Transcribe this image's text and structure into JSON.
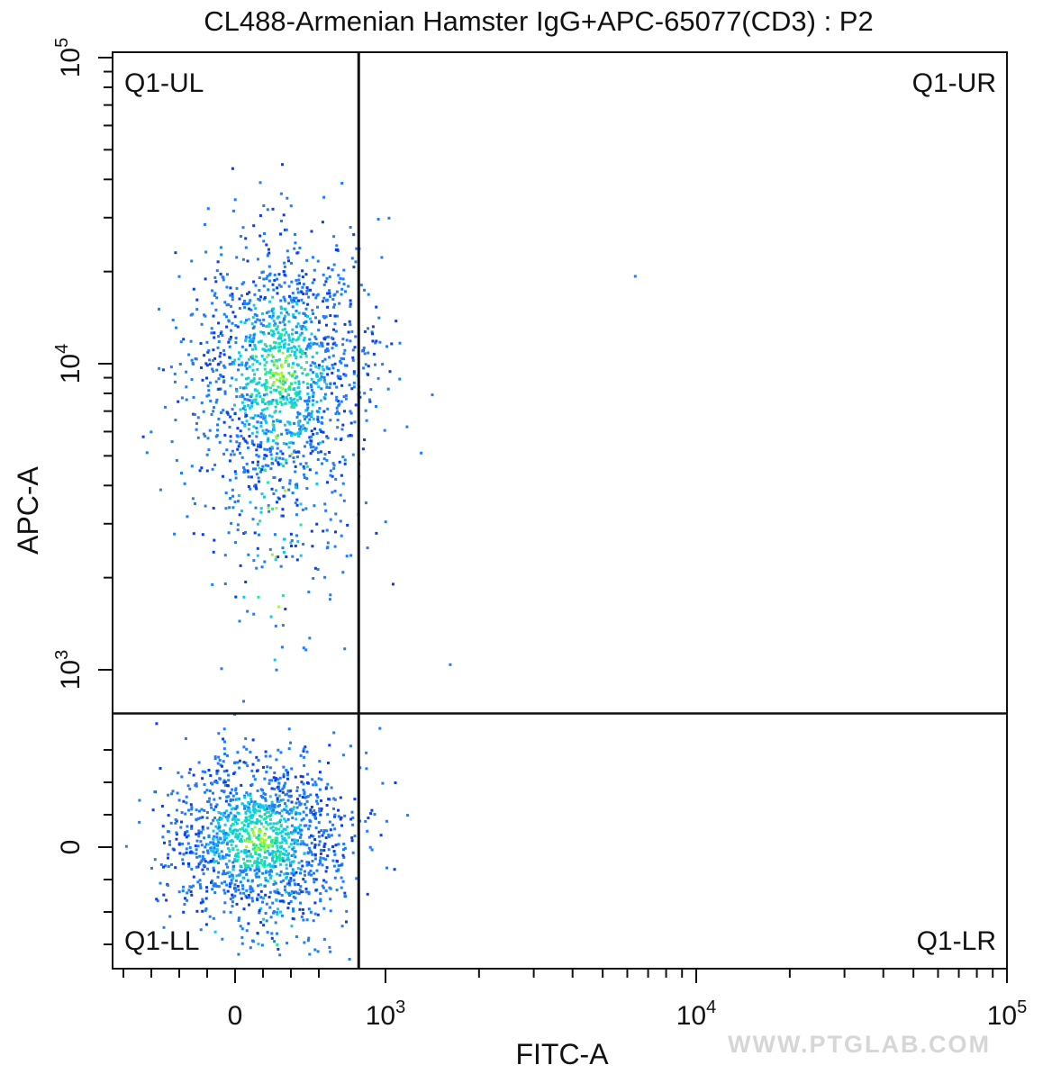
{
  "chart_data": {
    "type": "scatter",
    "title": "CL488-Armenian Hamster IgG+APC-65077(CD3) : P2",
    "xlabel": "FITC-A",
    "ylabel": "APC-A",
    "x_scale": "biexponential",
    "y_scale": "biexponential",
    "xlim": [
      -700,
      100000
    ],
    "ylim": [
      -700,
      100000
    ],
    "x_tick_labels": [
      {
        "value": 0,
        "base": "0",
        "exp": ""
      },
      {
        "value": 1000,
        "base": "10",
        "exp": "3"
      },
      {
        "value": 10000,
        "base": "10",
        "exp": "4"
      },
      {
        "value": 100000,
        "base": "10",
        "exp": "5"
      }
    ],
    "y_tick_labels": [
      {
        "value": 0,
        "base": "0",
        "exp": ""
      },
      {
        "value": 1000,
        "base": "10",
        "exp": "3"
      },
      {
        "value": 10000,
        "base": "10",
        "exp": "4"
      },
      {
        "value": 100000,
        "base": "10",
        "exp": "5"
      }
    ],
    "gates": {
      "x": 820,
      "y": 720
    },
    "quadrants": [
      {
        "name": "Q1-UL",
        "position": "top-left"
      },
      {
        "name": "Q1-UR",
        "position": "top-right"
      },
      {
        "name": "Q1-LL",
        "position": "bottom-left"
      },
      {
        "name": "Q1-LR",
        "position": "bottom-right"
      }
    ],
    "populations": [
      {
        "quadrant": "Q1-UL",
        "x_center": 150,
        "y_center": 9500,
        "approx_events": 1600
      },
      {
        "quadrant": "Q1-LL",
        "x_center": 80,
        "y_center": 30,
        "approx_events": 1500
      }
    ],
    "outliers": [
      {
        "x": 6300,
        "y": 19500
      },
      {
        "x": 1600,
        "y": 1050
      },
      {
        "x": 950,
        "y": 650
      },
      {
        "x": 1100,
        "y": 9000
      },
      {
        "x": 1000,
        "y": 11500
      },
      {
        "x": 1000,
        "y": -60
      }
    ],
    "colormap": [
      "#0a3cf0",
      "#1e7cff",
      "#13c8e6",
      "#1ee89a",
      "#a8f03c"
    ],
    "grid": false
  },
  "watermark": "WWW.PTGLAB.COM"
}
